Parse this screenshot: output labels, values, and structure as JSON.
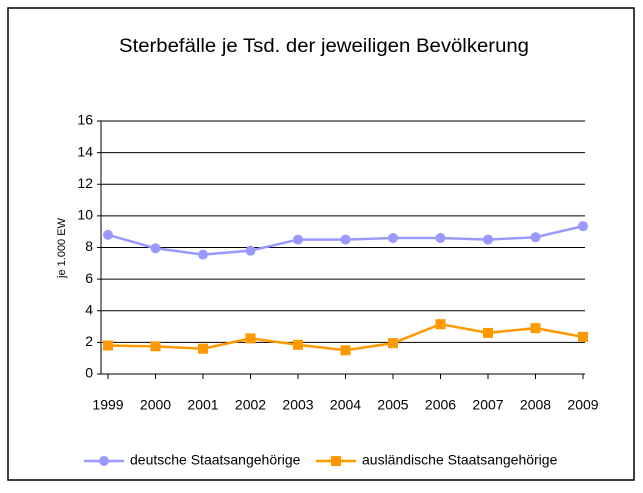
{
  "chart_data": {
    "type": "line",
    "title": "Sterbefälle je Tsd. der jeweiligen Bevölkerung",
    "y_label": "je 1.000 EW",
    "categories": [
      "1999",
      "2000",
      "2001",
      "2002",
      "2003",
      "2004",
      "2005",
      "2006",
      "2007",
      "2008",
      "2009"
    ],
    "series": [
      {
        "name": "deutsche Staatsangehörige",
        "color": "#9999ff",
        "marker": "circle",
        "values": [
          8.8,
          7.95,
          7.55,
          7.8,
          8.5,
          8.5,
          8.6,
          8.6,
          8.5,
          8.65,
          9.35
        ]
      },
      {
        "name": "ausländische Staatsangehörige",
        "color": "#ff9900",
        "marker": "square",
        "values": [
          1.8,
          1.75,
          1.6,
          2.25,
          1.85,
          1.5,
          1.95,
          3.15,
          2.6,
          2.9,
          2.35
        ]
      }
    ],
    "ylim": [
      0,
      16
    ],
    "yticks": [
      0,
      2,
      4,
      6,
      8,
      10,
      12,
      14,
      16
    ],
    "grid": true,
    "legend": "bottom"
  }
}
